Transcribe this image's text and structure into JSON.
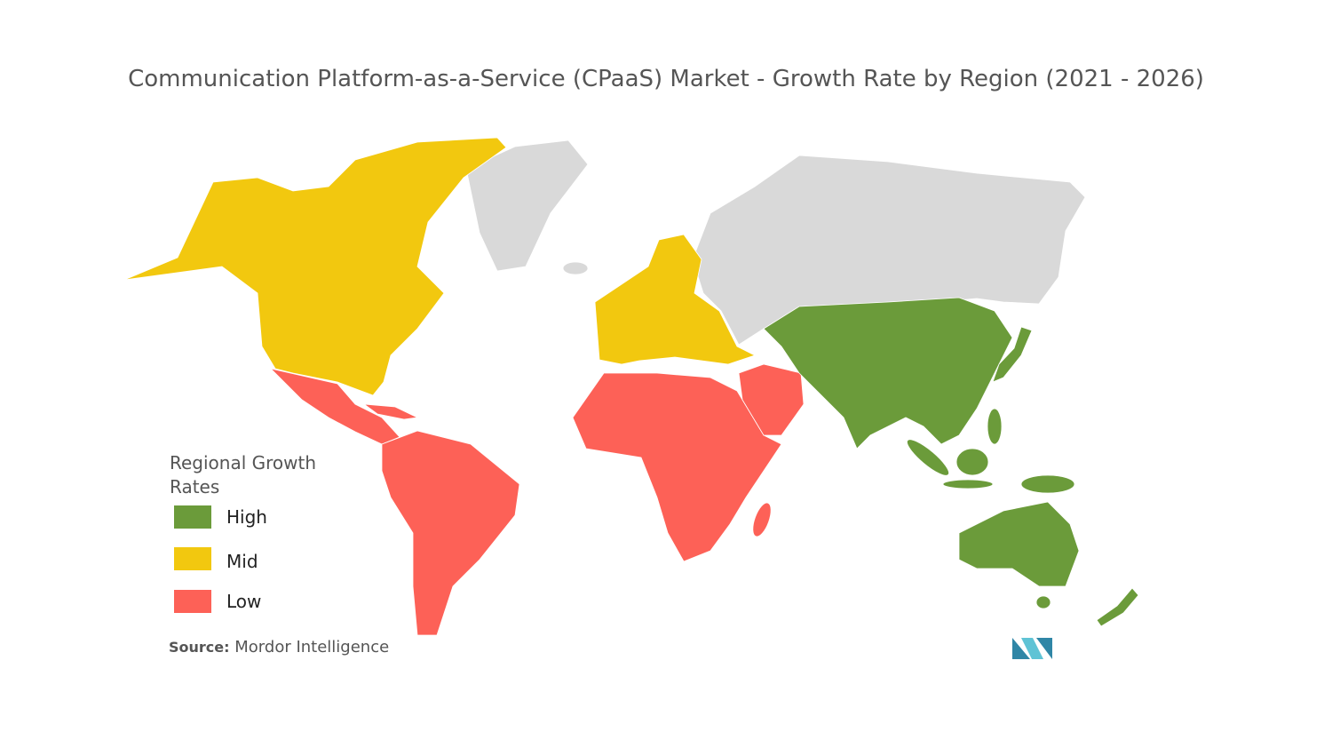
{
  "title": "Communication Platform-as-a-Service (CPaaS) Market - Growth Rate by Region (2021 - 2026)",
  "legend": {
    "title": "Regional Growth Rates",
    "items": [
      {
        "label": "High",
        "color": "#6b9b3a"
      },
      {
        "label": "Mid",
        "color": "#f2c80f"
      },
      {
        "label": "Low",
        "color": "#fd6157"
      }
    ]
  },
  "no_data_color": "#d9d9d9",
  "source": {
    "label": "Source:",
    "text": "Mordor Intelligence"
  }
}
